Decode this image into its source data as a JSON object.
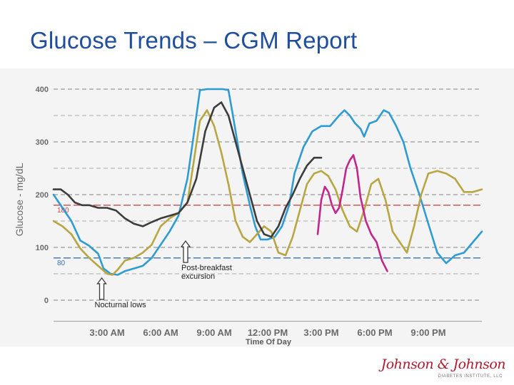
{
  "slide": {
    "title": "Glucose Trends – CGM Report"
  },
  "logo": {
    "wordmark": "Johnson & Johnson",
    "subline": "DIABETES INSTITUTE, LLC"
  },
  "chart_data": {
    "type": "line",
    "title": "",
    "xlabel": "Time Of Day",
    "ylabel": "Glucose - mg/dL",
    "x_unit": "hours after midnight",
    "xlim": [
      0,
      24
    ],
    "ylim": [
      0,
      400
    ],
    "x_ticks": [
      {
        "x": 3,
        "label": "3:00 AM"
      },
      {
        "x": 6,
        "label": "6:00 AM"
      },
      {
        "x": 9,
        "label": "9:00 AM"
      },
      {
        "x": 12,
        "label": "12:00 PM"
      },
      {
        "x": 15,
        "label": "3:00 PM"
      },
      {
        "x": 18,
        "label": "6:00 PM"
      },
      {
        "x": 21,
        "label": "9:00 PM"
      }
    ],
    "y_ticks": [
      0,
      100,
      200,
      300,
      400
    ],
    "grid": true,
    "reference_lines": [
      {
        "label": "180",
        "value": 180,
        "color": "#d04a4a"
      },
      {
        "label": "80",
        "value": 80,
        "color": "#3a6fb5"
      }
    ],
    "annotations": [
      {
        "text": "Post-breakfast excursion",
        "lines": [
          "Post-breakfast",
          "excursion"
        ],
        "x": 7.4,
        "y": 112
      },
      {
        "text": "Nocturnal lows",
        "lines": [
          "Nocturnal lows"
        ],
        "x": 2.7,
        "y": 42
      }
    ],
    "series": [
      {
        "color": "#2f9bd3",
        "x": [
          0,
          0.5,
          1,
          1.5,
          2,
          2.5,
          2.8,
          3.2,
          3.6,
          4,
          4.5,
          5,
          5.5,
          6,
          6.5,
          7,
          7.5,
          7.8,
          8.2,
          8.6,
          9,
          9.5,
          9.8,
          10,
          10.3,
          10.6,
          11,
          11.3,
          11.6,
          12,
          12.4,
          12.8,
          13.2,
          13.5,
          14,
          14.5,
          15,
          15.5,
          16,
          16.3,
          16.6,
          16.9,
          17.2,
          17.4,
          17.7,
          18.1,
          18.5,
          18.8,
          19.2,
          19.6,
          20,
          20.5,
          21,
          21.5,
          22,
          22.5,
          23,
          23.5,
          24
        ],
        "y": [
          200,
          175,
          150,
          113,
          103,
          88,
          60,
          50,
          48,
          55,
          60,
          65,
          80,
          105,
          130,
          160,
          230,
          300,
          398,
          400,
          400,
          400,
          398,
          360,
          300,
          240,
          180,
          140,
          115,
          115,
          120,
          140,
          180,
          240,
          290,
          320,
          330,
          330,
          350,
          360,
          350,
          335,
          325,
          310,
          335,
          340,
          360,
          355,
          330,
          300,
          250,
          200,
          145,
          90,
          70,
          85,
          90,
          110,
          130
        ]
      },
      {
        "color": "#b8a642",
        "x": [
          0,
          0.5,
          1,
          1.5,
          2,
          2.5,
          3,
          3.3,
          3.6,
          4,
          4.5,
          5,
          5.5,
          6,
          6.5,
          7,
          7.5,
          7.8,
          8.2,
          8.6,
          9,
          9.4,
          9.8,
          10.2,
          10.6,
          11,
          11.4,
          11.8,
          12.2,
          12.6,
          13,
          13.4,
          13.8,
          14.2,
          14.6,
          15,
          15.4,
          15.8,
          16.2,
          16.6,
          17,
          17.4,
          17.8,
          18.2,
          18.6,
          19,
          19.4,
          19.8,
          20.2,
          20.6,
          21,
          21.5,
          22,
          22.5,
          23,
          23.5,
          24
        ],
        "y": [
          150,
          140,
          125,
          98,
          80,
          65,
          50,
          48,
          58,
          75,
          80,
          90,
          105,
          140,
          155,
          165,
          185,
          250,
          340,
          360,
          330,
          280,
          220,
          150,
          120,
          110,
          125,
          140,
          130,
          90,
          85,
          120,
          170,
          220,
          240,
          245,
          235,
          210,
          170,
          140,
          130,
          170,
          220,
          230,
          190,
          130,
          110,
          90,
          140,
          200,
          240,
          245,
          240,
          230,
          205,
          205,
          210
        ]
      },
      {
        "color": "#3c3c3c",
        "x": [
          0,
          0.4,
          0.8,
          1.2,
          1.6,
          2,
          2.5,
          3,
          3.5,
          4,
          4.5,
          5,
          5.5,
          6,
          6.5,
          7,
          7.5,
          8,
          8.5,
          9,
          9.4,
          9.8,
          10.2,
          10.6,
          11,
          11.4,
          11.8,
          12.2,
          12.6,
          13,
          13.4,
          13.8,
          14.2,
          14.6,
          15
        ],
        "y": [
          210,
          210,
          200,
          185,
          180,
          180,
          175,
          175,
          170,
          155,
          145,
          140,
          148,
          155,
          160,
          165,
          185,
          230,
          320,
          365,
          375,
          350,
          300,
          250,
          200,
          150,
          125,
          120,
          140,
          175,
          200,
          230,
          255,
          270,
          270
        ]
      },
      {
        "color": "#c0268c",
        "x": [
          14.8,
          15,
          15.2,
          15.4,
          15.6,
          15.8,
          16,
          16.2,
          16.4,
          16.6,
          16.8,
          17,
          17.2,
          17.5,
          17.8,
          18.1,
          18.4,
          18.7
        ],
        "y": [
          125,
          190,
          215,
          205,
          180,
          165,
          175,
          210,
          250,
          265,
          275,
          250,
          195,
          150,
          125,
          110,
          75,
          55
        ]
      }
    ]
  }
}
